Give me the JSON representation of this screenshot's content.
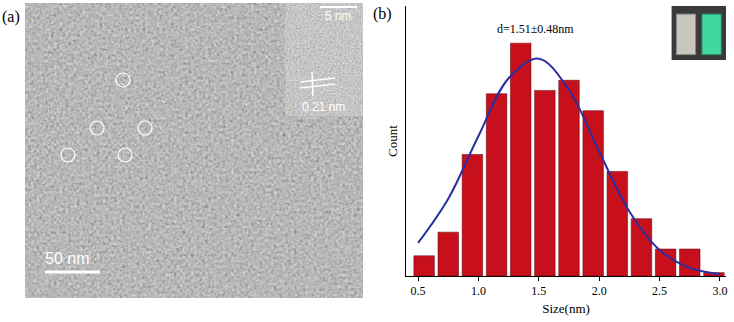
{
  "chart_data": {
    "type": "bar",
    "x_label": "Size(nm)",
    "y_label": "Count",
    "bins": [
      0.45,
      0.65,
      0.85,
      1.05,
      1.25,
      1.45,
      1.65,
      1.85,
      2.05,
      2.25,
      2.45,
      2.65,
      2.85,
      3.05
    ],
    "values": [
      6,
      13,
      36,
      54,
      69,
      55,
      58,
      49,
      31,
      17,
      8,
      8,
      1
    ],
    "color": "#c8101c",
    "fit": {
      "type": "line",
      "color": "#2a2fa0",
      "x": [
        0.5,
        0.75,
        1.0,
        1.25,
        1.5,
        1.75,
        2.0,
        2.25,
        2.5,
        2.75,
        3.0
      ],
      "values": [
        9.8,
        22.9,
        41.5,
        58.6,
        64.4,
        55.1,
        36.8,
        19.1,
        7.7,
        2.4,
        0.6
      ]
    },
    "xlim": [
      0.4,
      3.05
    ],
    "xticks": [
      {
        "value": 0.5,
        "label": "0.5"
      },
      {
        "value": 1,
        "label": "1.0"
      },
      {
        "value": 1.5,
        "label": "1.5"
      },
      {
        "value": 2,
        "label": "2.0"
      },
      {
        "value": 2.5,
        "label": "2.5"
      },
      {
        "value": 3,
        "label": "3.0"
      }
    ],
    "ylim": [
      0,
      80
    ],
    "yticks": [],
    "tick_labels": "x",
    "grid": false,
    "annotations": [
      "(b)",
      "d=1.51±0.48nm"
    ]
  },
  "image_panel": {
    "label": "(a)",
    "scale_bar": "50 nm",
    "inset_scale_bar": "5 nm",
    "lattice_spacing": "0.21 nm"
  }
}
